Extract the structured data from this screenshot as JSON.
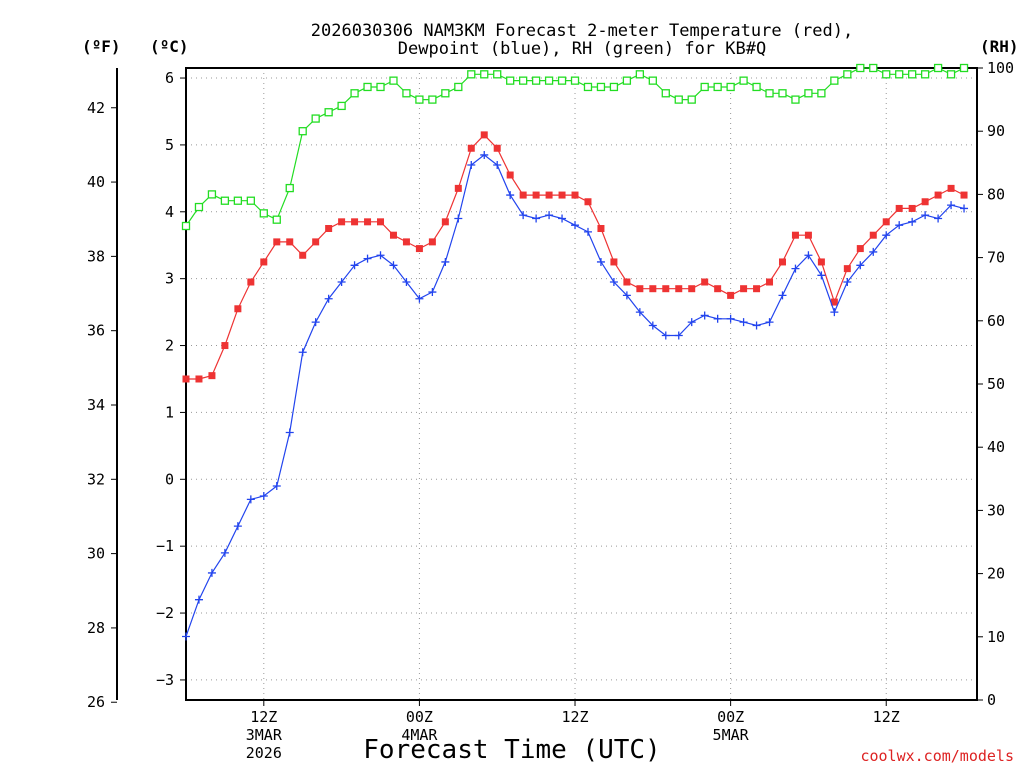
{
  "chart_data": {
    "type": "line",
    "title_line1": "2026030306 NAM3KM Forecast 2-meter Temperature (red),",
    "title_line2": "Dewpoint (blue), RH (green) for KB#Q",
    "unit_f": "(ºF)",
    "unit_c": "(ºC)",
    "unit_rh": "(RH)",
    "xlabel": "Forecast Time (UTC)",
    "credit": "coolwx.com/models",
    "x_start_hour": 6,
    "x_end_hour": 67,
    "ylim_c": [
      -3.3,
      6.15
    ],
    "ylim_rh": [
      0,
      100
    ],
    "y_ticks_c": [
      -3,
      -2,
      -1,
      0,
      1,
      2,
      3,
      4,
      5,
      6
    ],
    "y_ticks_f": [
      26,
      28,
      30,
      32,
      34,
      36,
      38,
      40,
      42
    ],
    "y_ticks_rh": [
      0,
      10,
      20,
      30,
      40,
      50,
      60,
      70,
      80,
      90,
      100
    ],
    "x_ticks": [
      {
        "hour": 12,
        "label": "12Z",
        "sub1": "3MAR",
        "sub2": "2026"
      },
      {
        "hour": 24,
        "label": "00Z",
        "sub1": "4MAR",
        "sub2": ""
      },
      {
        "hour": 36,
        "label": "12Z",
        "sub1": "",
        "sub2": ""
      },
      {
        "hour": 48,
        "label": "00Z",
        "sub1": "5MAR",
        "sub2": ""
      },
      {
        "hour": 60,
        "label": "12Z",
        "sub1": "",
        "sub2": ""
      }
    ],
    "grid": true,
    "colors": {
      "temperature": "#ee3333",
      "dewpoint": "#2244ee",
      "rh": "#22dd22"
    },
    "series": [
      {
        "name": "Temperature",
        "unit": "C",
        "values": [
          1.5,
          1.5,
          1.55,
          2.0,
          2.55,
          2.95,
          3.25,
          3.55,
          3.55,
          3.35,
          3.55,
          3.75,
          3.85,
          3.85,
          3.85,
          3.85,
          3.65,
          3.55,
          3.45,
          3.55,
          3.85,
          4.35,
          4.95,
          5.15,
          4.95,
          4.55,
          4.25,
          4.25,
          4.25,
          4.25,
          4.25,
          4.15,
          3.75,
          3.25,
          2.95,
          2.85,
          2.85,
          2.85,
          2.85,
          2.85,
          2.95,
          2.85,
          2.75,
          2.85,
          2.85,
          2.95,
          3.25,
          3.65,
          3.65,
          3.25,
          2.65,
          3.15,
          3.45,
          3.65,
          3.85,
          4.05,
          4.05,
          4.15,
          4.25,
          4.35,
          4.25
        ]
      },
      {
        "name": "Dewpoint",
        "unit": "C",
        "values": [
          -2.35,
          -1.8,
          -1.4,
          -1.1,
          -0.7,
          -0.3,
          -0.25,
          -0.1,
          0.7,
          1.9,
          2.35,
          2.7,
          2.95,
          3.2,
          3.3,
          3.35,
          3.2,
          2.95,
          2.7,
          2.8,
          3.25,
          3.9,
          4.7,
          4.85,
          4.7,
          4.25,
          3.95,
          3.9,
          3.95,
          3.9,
          3.8,
          3.7,
          3.25,
          2.95,
          2.75,
          2.5,
          2.3,
          2.15,
          2.15,
          2.35,
          2.45,
          2.4,
          2.4,
          2.35,
          2.3,
          2.35,
          2.75,
          3.15,
          3.35,
          3.05,
          2.5,
          2.95,
          3.2,
          3.4,
          3.65,
          3.8,
          3.85,
          3.95,
          3.9,
          4.1,
          4.05
        ]
      },
      {
        "name": "RH",
        "unit": "%",
        "values": [
          75,
          78,
          80,
          79,
          79,
          79,
          77,
          76,
          81,
          90,
          92,
          93,
          94,
          96,
          97,
          97,
          98,
          96,
          95,
          95,
          96,
          97,
          99,
          99,
          99,
          98,
          98,
          98,
          98,
          98,
          98,
          97,
          97,
          97,
          98,
          99,
          98,
          96,
          95,
          95,
          97,
          97,
          97,
          98,
          97,
          96,
          96,
          95,
          96,
          96,
          98,
          99,
          100,
          100,
          99,
          99,
          99,
          99,
          100,
          99,
          100
        ]
      }
    ]
  }
}
